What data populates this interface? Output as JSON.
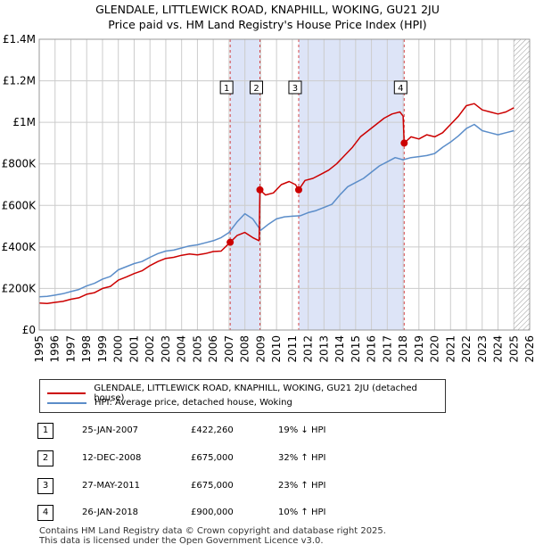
{
  "title_line1": "GLENDALE, LITTLEWICK ROAD, KNAPHILL, WOKING, GU21 2JU",
  "title_line2": "Price paid vs. HM Land Registry's House Price Index (HPI)",
  "colors": {
    "property": "#cc0000",
    "hpi": "#5b8dc9",
    "band": "#dde4f7",
    "grid": "#cccccc",
    "vline": "#cc0000"
  },
  "legend": {
    "property": "GLENDALE, LITTLEWICK ROAD, KNAPHILL, WOKING, GU21 2JU (detached house)",
    "hpi": "HPI: Average price, detached house, Woking"
  },
  "transactions": [
    {
      "num": "1",
      "date": "25-JAN-2007",
      "price": "£422,260",
      "hpi": "19% ↓ HPI"
    },
    {
      "num": "2",
      "date": "12-DEC-2008",
      "price": "£675,000",
      "hpi": "32% ↑ HPI"
    },
    {
      "num": "3",
      "date": "27-MAY-2011",
      "price": "£675,000",
      "hpi": "23% ↑ HPI"
    },
    {
      "num": "4",
      "date": "26-JAN-2018",
      "price": "£900,000",
      "hpi": "10% ↑ HPI"
    }
  ],
  "footer_line1": "Contains HM Land Registry data © Crown copyright and database right 2025.",
  "footer_line2": "This data is licensed under the Open Government Licence v3.0.",
  "chart_data": {
    "type": "line",
    "title": "Price paid vs. HM Land Registry's House Price Index (HPI)",
    "xlim": [
      1995,
      2026
    ],
    "ylim": [
      0,
      1400000
    ],
    "x_ticks": [
      1995,
      1996,
      1997,
      1998,
      1999,
      2000,
      2001,
      2002,
      2003,
      2004,
      2005,
      2006,
      2007,
      2008,
      2009,
      2010,
      2011,
      2012,
      2013,
      2014,
      2015,
      2016,
      2017,
      2018,
      2019,
      2020,
      2021,
      2022,
      2023,
      2024,
      2025,
      2026
    ],
    "y_ticks": [
      {
        "value": 0,
        "label": "£0"
      },
      {
        "value": 200000,
        "label": "£200K"
      },
      {
        "value": 400000,
        "label": "£400K"
      },
      {
        "value": 600000,
        "label": "£600K"
      },
      {
        "value": 800000,
        "label": "£800K"
      },
      {
        "value": 1000000,
        "label": "£1M"
      },
      {
        "value": 1200000,
        "label": "£1.2M"
      },
      {
        "value": 1400000,
        "label": "£1.4M"
      }
    ],
    "shaded_bands": [
      [
        2007.07,
        2008.95
      ],
      [
        2011.4,
        2018.07
      ]
    ],
    "hatch_from": 2025.0,
    "sales": [
      {
        "label": "1",
        "x": 2007.07,
        "y": 422260
      },
      {
        "label": "2",
        "x": 2008.95,
        "y": 675000
      },
      {
        "label": "3",
        "x": 2011.4,
        "y": 675000
      },
      {
        "label": "4",
        "x": 2018.07,
        "y": 900000
      }
    ],
    "series": [
      {
        "name": "GLENDALE, LITTLEWICK ROAD, KNAPHILL, WOKING, GU21 2JU (detached house)",
        "x": [
          1995.0,
          1995.5,
          1996.0,
          1996.5,
          1997.0,
          1997.5,
          1998.0,
          1998.5,
          1999.0,
          1999.5,
          2000.0,
          2000.5,
          2001.0,
          2001.5,
          2002.0,
          2002.5,
          2003.0,
          2003.5,
          2004.0,
          2004.5,
          2005.0,
          2005.5,
          2006.0,
          2006.5,
          2007.07,
          2007.5,
          2008.0,
          2008.5,
          2008.9,
          2008.95,
          2009.3,
          2009.8,
          2010.3,
          2010.8,
          2011.2,
          2011.4,
          2011.8,
          2012.3,
          2012.8,
          2013.3,
          2013.8,
          2014.3,
          2014.8,
          2015.3,
          2015.8,
          2016.3,
          2016.8,
          2017.3,
          2017.8,
          2018.0,
          2018.07,
          2018.5,
          2019.0,
          2019.5,
          2020.0,
          2020.5,
          2021.0,
          2021.5,
          2022.0,
          2022.5,
          2023.0,
          2023.5,
          2024.0,
          2024.5,
          2025.0
        ],
        "y": [
          130000,
          128000,
          133000,
          138000,
          148000,
          155000,
          172000,
          180000,
          200000,
          210000,
          240000,
          255000,
          272000,
          285000,
          310000,
          330000,
          345000,
          350000,
          360000,
          366000,
          362000,
          368000,
          378000,
          380000,
          422260,
          455000,
          470000,
          445000,
          430000,
          675000,
          650000,
          660000,
          700000,
          715000,
          700000,
          675000,
          720000,
          730000,
          750000,
          770000,
          800000,
          840000,
          880000,
          930000,
          960000,
          990000,
          1020000,
          1040000,
          1050000,
          1030000,
          900000,
          930000,
          920000,
          940000,
          930000,
          950000,
          990000,
          1030000,
          1080000,
          1090000,
          1060000,
          1050000,
          1040000,
          1050000,
          1070000
        ]
      },
      {
        "name": "HPI: Average price, detached house, Woking",
        "x": [
          1995.0,
          1995.5,
          1996.0,
          1996.5,
          1997.0,
          1997.5,
          1998.0,
          1998.5,
          1999.0,
          1999.5,
          2000.0,
          2000.5,
          2001.0,
          2001.5,
          2002.0,
          2002.5,
          2003.0,
          2003.5,
          2004.0,
          2004.5,
          2005.0,
          2005.5,
          2006.0,
          2006.5,
          2007.0,
          2007.5,
          2008.0,
          2008.5,
          2009.0,
          2009.5,
          2010.0,
          2010.5,
          2011.0,
          2011.5,
          2012.0,
          2012.5,
          2013.0,
          2013.5,
          2014.0,
          2014.5,
          2015.0,
          2015.5,
          2016.0,
          2016.5,
          2017.0,
          2017.5,
          2018.0,
          2018.5,
          2019.0,
          2019.5,
          2020.0,
          2020.5,
          2021.0,
          2021.5,
          2022.0,
          2022.5,
          2023.0,
          2023.5,
          2024.0,
          2024.5,
          2025.0
        ],
        "y": [
          160000,
          162000,
          168000,
          175000,
          185000,
          195000,
          212000,
          225000,
          245000,
          258000,
          290000,
          305000,
          320000,
          330000,
          350000,
          368000,
          380000,
          385000,
          395000,
          405000,
          410000,
          420000,
          430000,
          445000,
          470000,
          520000,
          560000,
          535000,
          480000,
          510000,
          535000,
          545000,
          548000,
          550000,
          565000,
          575000,
          590000,
          605000,
          650000,
          690000,
          710000,
          730000,
          760000,
          790000,
          810000,
          830000,
          820000,
          830000,
          835000,
          840000,
          850000,
          880000,
          905000,
          935000,
          970000,
          990000,
          960000,
          950000,
          940000,
          950000,
          960000
        ]
      }
    ]
  }
}
